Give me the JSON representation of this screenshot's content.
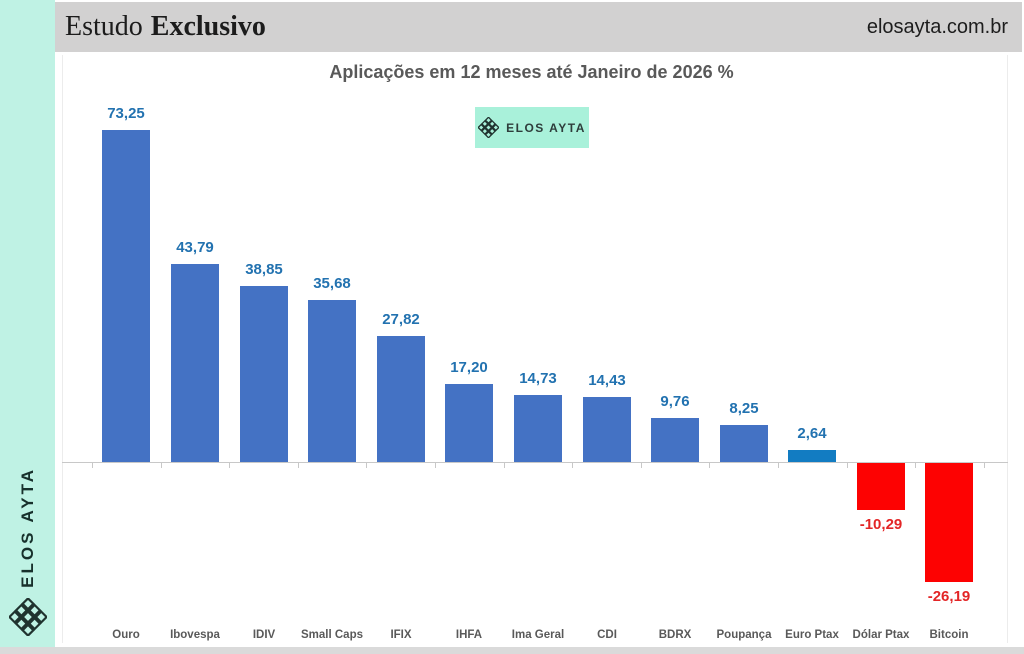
{
  "sidebar": {
    "brand": "ELOS AYTA",
    "icon": "elos-ayta-diamond-lattice-icon",
    "bg": "#BFF2E4"
  },
  "header": {
    "masthead_regular": "Estudo",
    "masthead_bold": "Exclusivo",
    "site": "elosayta.com.br",
    "bg": "#D2D1D1"
  },
  "badge": {
    "label": "ELOS AYTA",
    "icon": "elos-ayta-diamond-lattice-icon",
    "bg": "#A9F1DA"
  },
  "chart_data": {
    "type": "bar",
    "title": "Aplicações em 12 meses até Janeiro de 2026 %",
    "unit": "%",
    "categories": [
      "Ouro",
      "Ibovespa",
      "IDIV",
      "Small Caps",
      "IFIX",
      "IHFA",
      "Ima Geral",
      "CDI",
      "BDRX",
      "Poupança",
      "Euro Ptax",
      "Dólar Ptax",
      "Bitcoin"
    ],
    "values": [
      73.25,
      43.79,
      38.85,
      35.68,
      27.82,
      17.2,
      14.73,
      14.43,
      9.76,
      8.25,
      2.64,
      -10.29,
      -26.19
    ],
    "labels": [
      "73,25",
      "43,79",
      "38,85",
      "35,68",
      "27,82",
      "17,20",
      "14,73",
      "14,43",
      "9,76",
      "8,25",
      "2,64",
      "-10,29",
      "-26,19"
    ],
    "bar_colors": [
      "#4472C4",
      "#4472C4",
      "#4472C4",
      "#4472C4",
      "#4472C4",
      "#4472C4",
      "#4472C4",
      "#4472C4",
      "#4472C4",
      "#4472C4",
      "#127CC2",
      "#FD0202",
      "#FD0202"
    ],
    "positive_label_color": "#2272B0",
    "negative_label_color": "#E32526",
    "category_label_color": "#595959",
    "ylim": [
      -30,
      80
    ],
    "grid": false,
    "legend": "none",
    "baseline": 0
  }
}
